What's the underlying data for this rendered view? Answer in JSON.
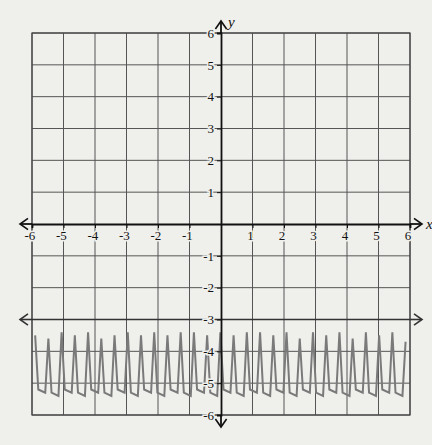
{
  "chart_data": {
    "type": "line",
    "x_label": "x",
    "y_label": "y",
    "xlim": [
      -6,
      6
    ],
    "ylim": [
      -6,
      6
    ],
    "xticks": [
      -6,
      -5,
      -4,
      -3,
      -2,
      -1,
      1,
      2,
      3,
      4,
      5,
      6
    ],
    "yticks": [
      -6,
      -5,
      -4,
      -3,
      -2,
      -1,
      1,
      2,
      3,
      4,
      5,
      6
    ],
    "grid": true,
    "series": [
      {
        "color": "#7a7a7a",
        "line_style": "solid",
        "x": [
          -5.9,
          -5.8,
          -5.58,
          -5.48,
          -5.38,
          -5.16,
          -5.06,
          -4.96,
          -4.74,
          -4.64,
          -4.54,
          -4.32,
          -4.22,
          -4.12,
          -3.9,
          -3.8,
          -3.7,
          -3.48,
          -3.38,
          -3.28,
          -3.06,
          -2.96,
          -2.86,
          -2.64,
          -2.54,
          -2.44,
          -2.22,
          -2.12,
          -2.02,
          -1.8,
          -1.7,
          -1.6,
          -1.38,
          -1.28,
          -1.18,
          -0.96,
          -0.86,
          -0.76,
          -0.54,
          -0.44,
          -0.34,
          -0.12,
          -0.02,
          0.08,
          0.3,
          0.4,
          0.5,
          0.72,
          0.82,
          0.92,
          1.14,
          1.24,
          1.34,
          1.56,
          1.66,
          1.76,
          1.98,
          2.08,
          2.18,
          2.4,
          2.5,
          2.6,
          2.82,
          2.92,
          3.02,
          3.24,
          3.34,
          3.44,
          3.66,
          3.76,
          3.86,
          4.08,
          4.18,
          4.28,
          4.5,
          4.6,
          4.7,
          4.92,
          5.02,
          5.12,
          5.34,
          5.44,
          5.54,
          5.76,
          5.86
        ],
        "values": [
          -3.5,
          -5.2,
          -5.3,
          -3.6,
          -5.3,
          -5.4,
          -3.4,
          -5.2,
          -5.3,
          -3.5,
          -5.3,
          -5.4,
          -3.4,
          -5.2,
          -5.3,
          -3.6,
          -5.3,
          -5.4,
          -3.5,
          -5.2,
          -5.3,
          -3.4,
          -5.3,
          -5.4,
          -3.5,
          -5.2,
          -5.3,
          -3.4,
          -5.3,
          -5.4,
          -3.5,
          -5.2,
          -5.3,
          -3.4,
          -5.3,
          -5.4,
          -3.4,
          -5.2,
          -5.3,
          -3.5,
          -5.3,
          -5.4,
          -3.4,
          -5.2,
          -5.3,
          -3.5,
          -5.3,
          -5.4,
          -3.4,
          -5.2,
          -5.3,
          -3.4,
          -5.3,
          -5.4,
          -3.5,
          -5.2,
          -5.3,
          -3.4,
          -5.3,
          -5.4,
          -3.6,
          -5.2,
          -5.3,
          -3.4,
          -5.3,
          -5.4,
          -3.5,
          -5.2,
          -5.3,
          -3.4,
          -5.3,
          -5.4,
          -3.6,
          -5.2,
          -5.3,
          -3.4,
          -5.3,
          -5.4,
          -3.5,
          -5.2,
          -5.3,
          -3.4,
          -5.3,
          -5.4,
          -3.7
        ]
      },
      {
        "color": "#333333",
        "line_style": "solid",
        "marker": "arrow",
        "x": [
          -6,
          6
        ],
        "values": [
          -3,
          -3
        ]
      }
    ]
  }
}
